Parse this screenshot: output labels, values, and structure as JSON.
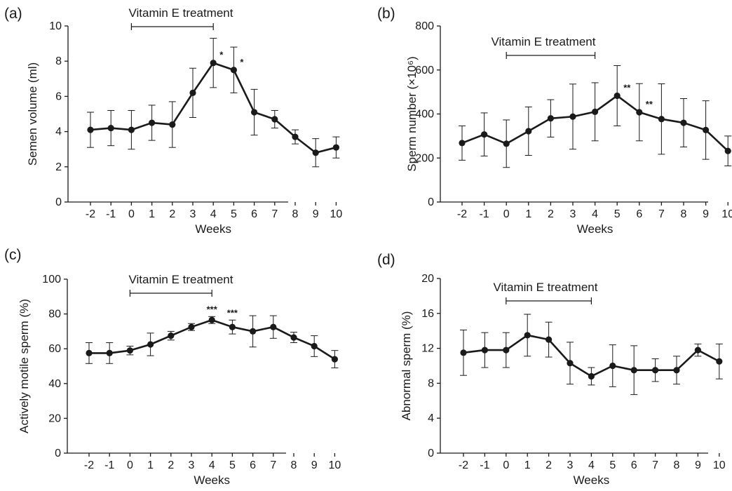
{
  "chart_data": [
    {
      "type": "line",
      "panel": "(a)",
      "x": [
        "-2",
        "-1",
        "0",
        "1",
        "2",
        "3",
        "4",
        "5",
        "6",
        "7",
        "8",
        "9",
        "10"
      ],
      "values": [
        4.1,
        4.2,
        4.1,
        4.5,
        4.4,
        6.2,
        7.9,
        7.5,
        5.1,
        4.7,
        3.7,
        2.8,
        3.1
      ],
      "errors": [
        1.0,
        1.0,
        1.1,
        1.0,
        1.3,
        1.4,
        1.4,
        1.3,
        1.3,
        0.5,
        0.4,
        0.8,
        0.6
      ],
      "significance": [
        {
          "x": "4",
          "label": "*"
        },
        {
          "x": "5",
          "label": "*"
        }
      ],
      "treatment": {
        "label": "Vitamin E  treatment",
        "from": "0",
        "to": "4"
      },
      "xlabel": "Weeks",
      "ylabel": "Semen volume (ml)",
      "ylim": [
        0,
        10
      ],
      "yticks": [
        0,
        2,
        4,
        6,
        8,
        10
      ],
      "grid": false
    },
    {
      "type": "line",
      "panel": "(b)",
      "x": [
        "-2",
        "-1",
        "0",
        "1",
        "2",
        "3",
        "4",
        "5",
        "6",
        "7",
        "8",
        "9",
        "10"
      ],
      "values": [
        268,
        307,
        265,
        322,
        380,
        388,
        410,
        483,
        408,
        377,
        360,
        327,
        232
      ],
      "errors": [
        78,
        98,
        108,
        110,
        85,
        148,
        132,
        137,
        130,
        160,
        110,
        133,
        68
      ],
      "significance": [
        {
          "x": "5",
          "label": "**"
        },
        {
          "x": "6",
          "label": "**"
        }
      ],
      "treatment": {
        "label": "Vitamin E  treatment",
        "from": "0",
        "to": "4"
      },
      "xlabel": "Weeks",
      "ylabel": "Sperm number (×10⁶)",
      "ylim": [
        0,
        800
      ],
      "yticks": [
        0,
        200,
        400,
        600,
        800
      ],
      "grid": false
    },
    {
      "type": "line",
      "panel": "(c)",
      "x": [
        "-2",
        "-1",
        "0",
        "1",
        "2",
        "3",
        "4",
        "5",
        "6",
        "7",
        "8",
        "9",
        "10"
      ],
      "values": [
        57.5,
        57.5,
        59,
        62.5,
        67.5,
        72.5,
        76.5,
        72.5,
        70,
        72.5,
        66.5,
        61.5,
        54
      ],
      "errors": [
        6,
        6,
        2.5,
        6.5,
        2.5,
        2,
        2,
        4,
        9,
        6.5,
        3,
        6,
        5
      ],
      "significance": [
        {
          "x": "4",
          "label": "***"
        },
        {
          "x": "5",
          "label": "***"
        }
      ],
      "treatment": {
        "label": "Vitamin E  treatment",
        "from": "0",
        "to": "4"
      },
      "xlabel": "Weeks",
      "ylabel": "Actively motile sperm (%)",
      "ylim": [
        0,
        100
      ],
      "yticks": [
        0,
        20,
        40,
        60,
        80,
        100
      ],
      "grid": false
    },
    {
      "type": "line",
      "panel": "(d)",
      "x": [
        "-2",
        "-1",
        "0",
        "1",
        "2",
        "3",
        "4",
        "5",
        "6",
        "7",
        "8",
        "9",
        "10"
      ],
      "values": [
        11.5,
        11.8,
        11.8,
        13.5,
        13,
        10.3,
        8.8,
        10,
        9.5,
        9.5,
        9.5,
        11.8,
        10.5
      ],
      "errors": [
        2.6,
        2,
        2,
        2.4,
        2,
        2.4,
        1,
        2.4,
        2.8,
        1.3,
        1.6,
        0.7,
        2
      ],
      "significance": [],
      "treatment": {
        "label": "Vitamin E  treatment",
        "from": "0",
        "to": "4"
      },
      "xlabel": "Weeks",
      "ylabel": "Abnormal sperm (%)",
      "ylim": [
        0,
        20
      ],
      "yticks": [
        0,
        4,
        8,
        12,
        16,
        20
      ],
      "grid": false
    }
  ]
}
